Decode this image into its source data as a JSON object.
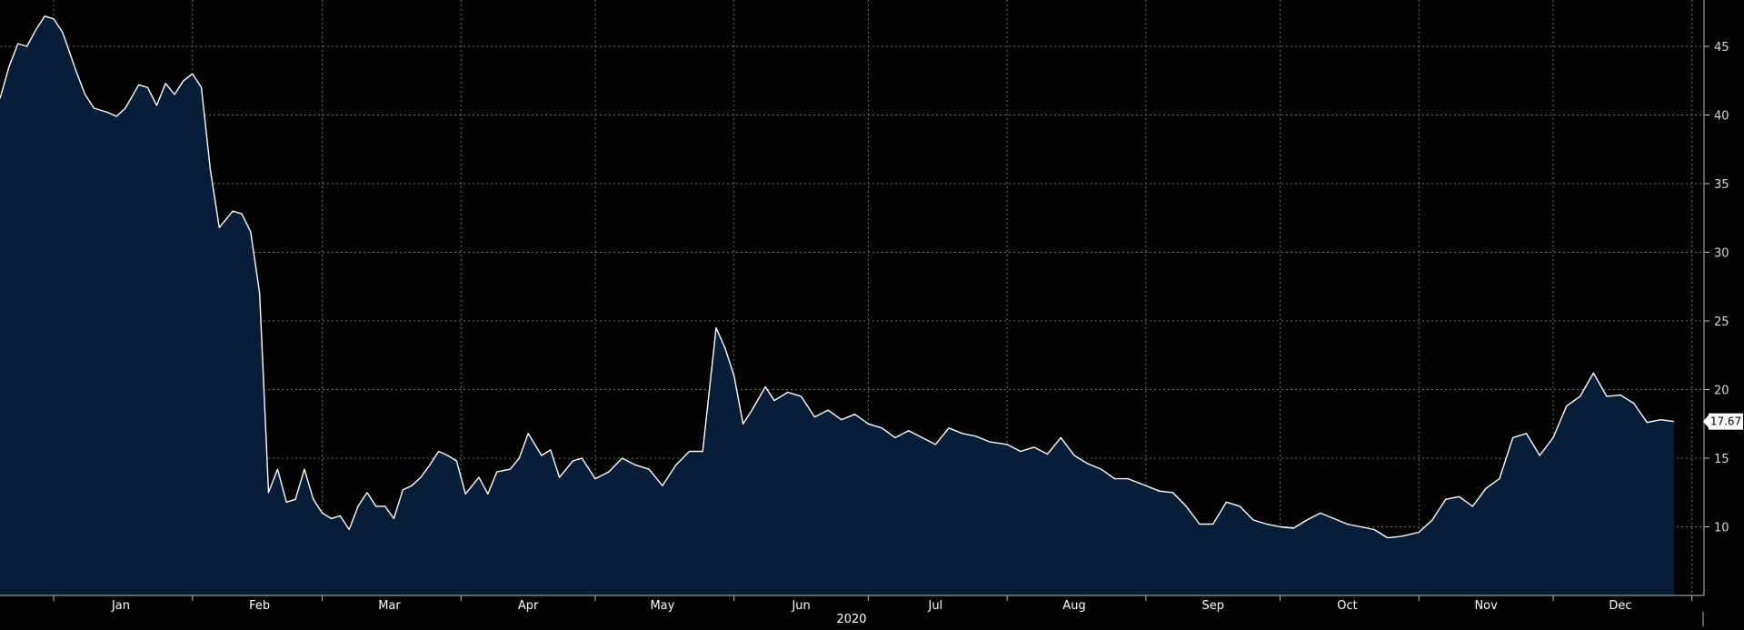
{
  "chart_data": {
    "type": "area",
    "title": "",
    "xlabel": "2020",
    "ylabel": "",
    "ylim": [
      5,
      48
    ],
    "yticks": [
      10,
      15,
      20,
      25,
      30,
      35,
      40,
      45
    ],
    "grid": true,
    "legend": "none",
    "colors": {
      "line": "#ffffff",
      "fill": "#071c36",
      "grid": "#6e6e6e",
      "background": "#000000"
    },
    "months": [
      "Jan",
      "Feb",
      "Mar",
      "Apr",
      "May",
      "Jun",
      "Jul",
      "Aug",
      "Sep",
      "Oct",
      "Nov",
      "Dec"
    ],
    "x_range": [
      "2019-12-20",
      "2020-12-28"
    ],
    "last_value": "17.67",
    "series": [
      {
        "dates": [
          "2019-12-20",
          "2019-12-22",
          "2019-12-24",
          "2019-12-26",
          "2019-12-28",
          "2019-12-30",
          "2020-01-01",
          "2020-01-03",
          "2020-01-06",
          "2020-01-08",
          "2020-01-10",
          "2020-01-13",
          "2020-01-15",
          "2020-01-17",
          "2020-01-20",
          "2020-01-22",
          "2020-01-24",
          "2020-01-26",
          "2020-01-28",
          "2020-01-30",
          "2020-02-01",
          "2020-02-03",
          "2020-02-05",
          "2020-02-07",
          "2020-02-10",
          "2020-02-12",
          "2020-02-14",
          "2020-02-16",
          "2020-02-18",
          "2020-02-20",
          "2020-02-22",
          "2020-02-24",
          "2020-02-26",
          "2020-02-28",
          "2020-03-01",
          "2020-03-03",
          "2020-03-05",
          "2020-03-07",
          "2020-03-09",
          "2020-03-11",
          "2020-03-13",
          "2020-03-15",
          "2020-03-17",
          "2020-03-19",
          "2020-03-21",
          "2020-03-23",
          "2020-03-25",
          "2020-03-27",
          "2020-03-29",
          "2020-03-31",
          "2020-04-02",
          "2020-04-05",
          "2020-04-07",
          "2020-04-09",
          "2020-04-12",
          "2020-04-14",
          "2020-04-16",
          "2020-04-19",
          "2020-04-21",
          "2020-04-23",
          "2020-04-26",
          "2020-04-28",
          "2020-05-01",
          "2020-05-04",
          "2020-05-07",
          "2020-05-10",
          "2020-05-13",
          "2020-05-16",
          "2020-05-19",
          "2020-05-22",
          "2020-05-25",
          "2020-05-28",
          "2020-05-30",
          "2020-06-01",
          "2020-06-03",
          "2020-06-05",
          "2020-06-08",
          "2020-06-10",
          "2020-06-13",
          "2020-06-16",
          "2020-06-19",
          "2020-06-22",
          "2020-06-25",
          "2020-06-28",
          "2020-07-01",
          "2020-07-04",
          "2020-07-07",
          "2020-07-10",
          "2020-07-13",
          "2020-07-16",
          "2020-07-19",
          "2020-07-22",
          "2020-07-25",
          "2020-07-28",
          "2020-08-01",
          "2020-08-04",
          "2020-08-07",
          "2020-08-10",
          "2020-08-13",
          "2020-08-16",
          "2020-08-19",
          "2020-08-22",
          "2020-08-25",
          "2020-08-28",
          "2020-09-01",
          "2020-09-04",
          "2020-09-07",
          "2020-09-10",
          "2020-09-13",
          "2020-09-16",
          "2020-09-19",
          "2020-09-22",
          "2020-09-25",
          "2020-09-28",
          "2020-10-01",
          "2020-10-04",
          "2020-10-07",
          "2020-10-10",
          "2020-10-13",
          "2020-10-16",
          "2020-10-19",
          "2020-10-22",
          "2020-10-25",
          "2020-10-28",
          "2020-11-01",
          "2020-11-04",
          "2020-11-07",
          "2020-11-10",
          "2020-11-13",
          "2020-11-16",
          "2020-11-19",
          "2020-11-22",
          "2020-11-25",
          "2020-11-28",
          "2020-12-01",
          "2020-12-04",
          "2020-12-07",
          "2020-12-10",
          "2020-12-13",
          "2020-12-16",
          "2020-12-19",
          "2020-12-22",
          "2020-12-25",
          "2020-12-28"
        ],
        "values": [
          41.2,
          43.5,
          45.2,
          45.0,
          46.2,
          47.2,
          47.0,
          46.0,
          43.2,
          41.5,
          40.5,
          40.2,
          39.9,
          40.5,
          42.2,
          42.0,
          40.7,
          42.3,
          41.5,
          42.5,
          43.0,
          42.0,
          36.0,
          31.8,
          33.0,
          32.8,
          31.5,
          27.0,
          12.5,
          14.2,
          11.8,
          12.0,
          14.2,
          12.0,
          11.0,
          10.6,
          10.8,
          9.8,
          11.5,
          12.5,
          11.5,
          11.5,
          10.6,
          12.7,
          13.0,
          13.6,
          14.5,
          15.5,
          15.2,
          14.8,
          12.4,
          13.6,
          12.4,
          14.0,
          14.2,
          15.0,
          16.8,
          15.2,
          15.6,
          13.6,
          14.8,
          15.0,
          13.5,
          14.0,
          15.0,
          14.5,
          14.2,
          13.0,
          14.5,
          15.5,
          15.5,
          24.5,
          23.0,
          21.0,
          17.5,
          18.5,
          20.2,
          19.2,
          19.8,
          19.5,
          18.0,
          18.5,
          17.8,
          18.2,
          17.5,
          17.2,
          16.5,
          17.0,
          16.5,
          16.0,
          17.2,
          16.8,
          16.6,
          16.2,
          16.0,
          15.5,
          15.8,
          15.3,
          16.5,
          15.2,
          14.6,
          14.2,
          13.5,
          13.5,
          13.0,
          12.6,
          12.5,
          11.5,
          10.2,
          10.2,
          11.8,
          11.5,
          10.5,
          10.2,
          10.0,
          9.9,
          10.5,
          11.0,
          10.6,
          10.2,
          10.0,
          9.8,
          9.2,
          9.3,
          9.6,
          10.5,
          12.0,
          12.2,
          11.5,
          12.8,
          13.5,
          16.5,
          16.8,
          15.2,
          16.5,
          18.8,
          19.5,
          21.2,
          19.5,
          19.6,
          19.0,
          17.6,
          17.8,
          17.67
        ]
      }
    ]
  }
}
